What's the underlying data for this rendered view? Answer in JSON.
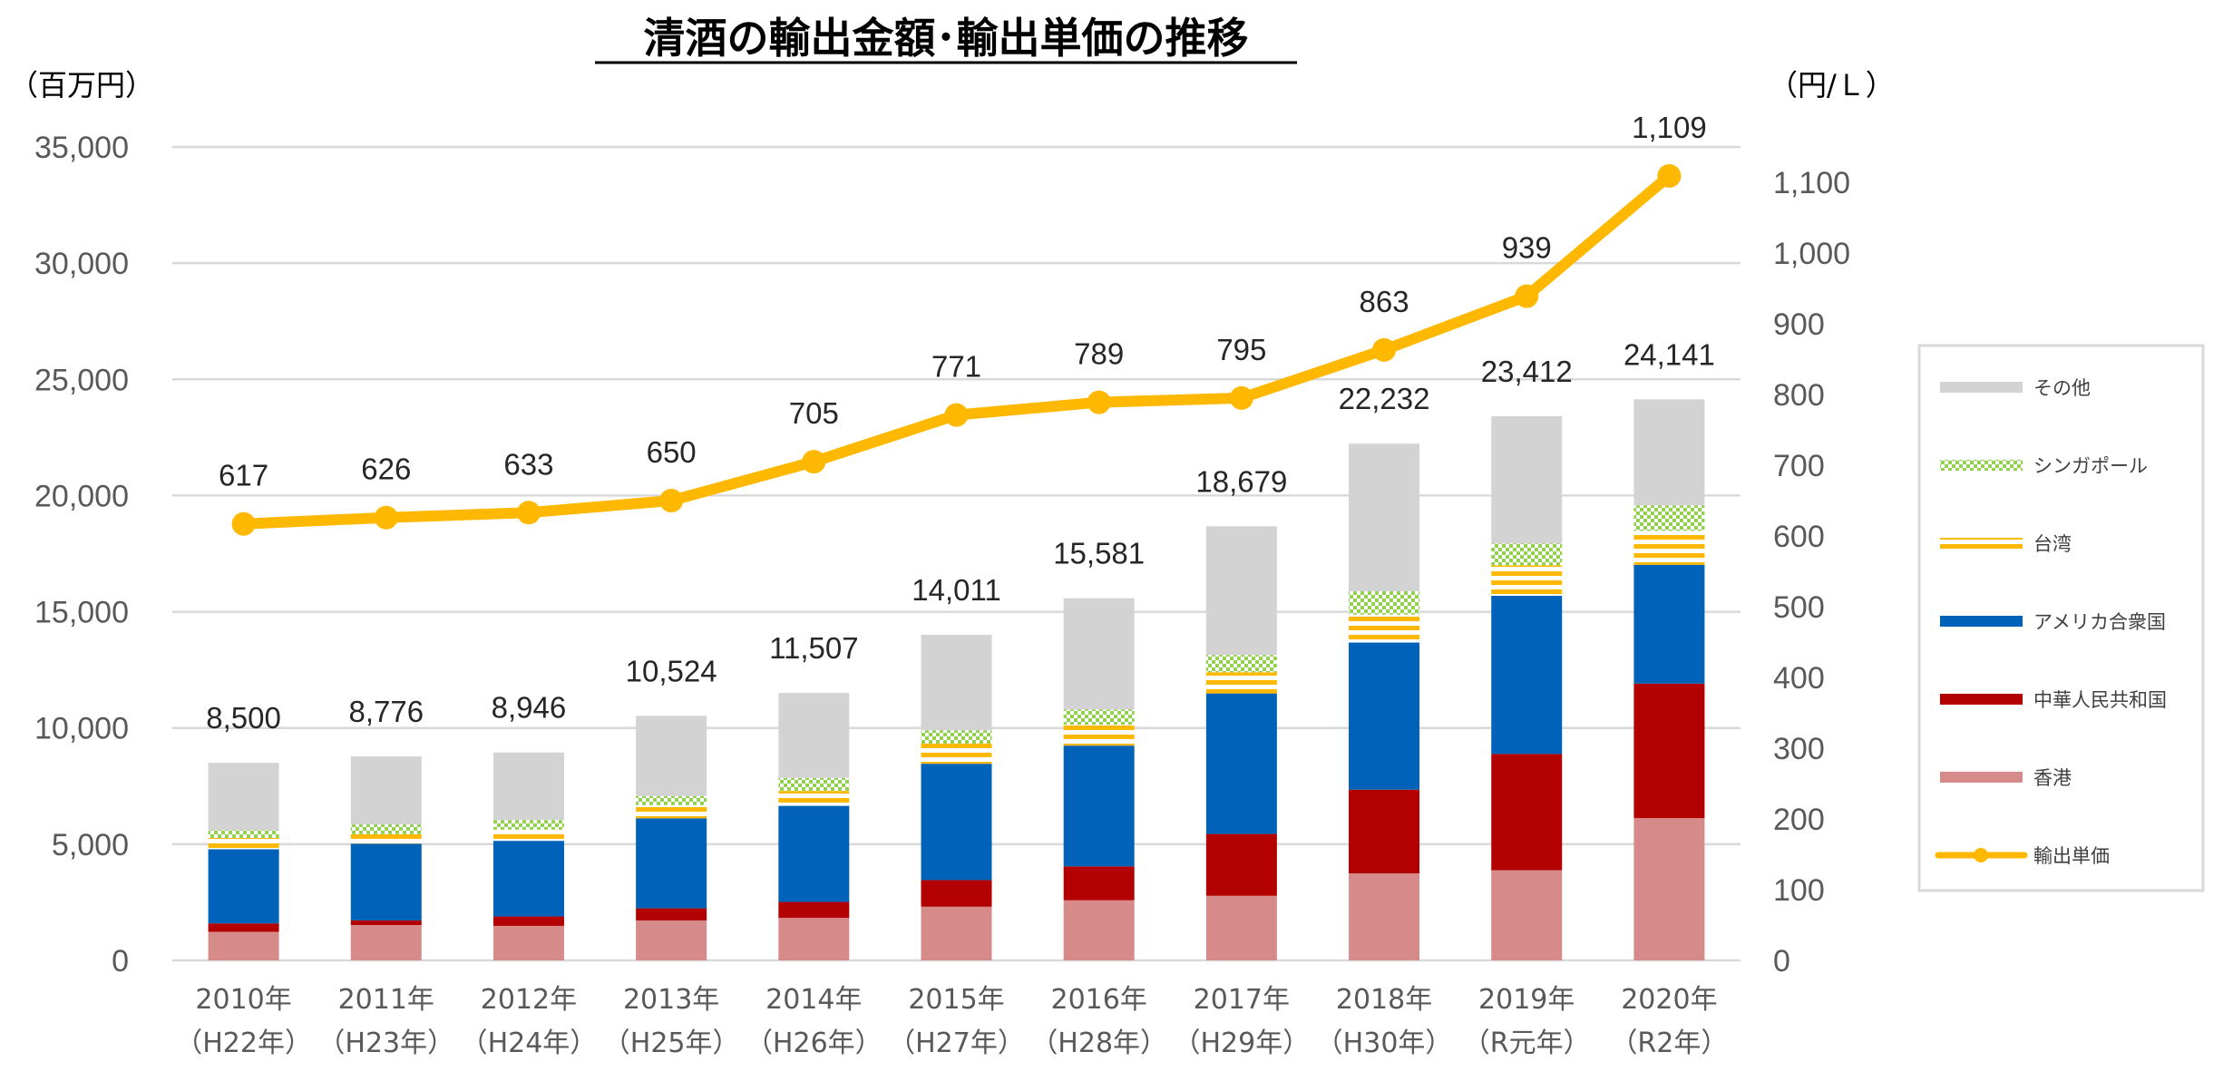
{
  "chart_data": {
    "type": "bar",
    "subtype": "stacked-bar-with-line",
    "title": "清酒の輸出金額･輸出単価の推移",
    "left_axis": {
      "label": "（百万円）",
      "min": 0,
      "max": 35000,
      "step": 5000,
      "ticks": [
        "0",
        "5,000",
        "10,000",
        "15,000",
        "20,000",
        "25,000",
        "30,000",
        "35,000"
      ]
    },
    "right_axis": {
      "label": "（円/Ｌ）",
      "min": 0,
      "max": 1150,
      "step": 100,
      "ticks": [
        "0",
        "100",
        "200",
        "300",
        "400",
        "500",
        "600",
        "700",
        "800",
        "900",
        "1,000",
        "1,100"
      ]
    },
    "grid": true,
    "legend_position": "right",
    "categories": [
      [
        "2010年",
        "（H22年）"
      ],
      [
        "2011年",
        "（H23年）"
      ],
      [
        "2012年",
        "（H24年）"
      ],
      [
        "2013年",
        "（H25年）"
      ],
      [
        "2014年",
        "（H26年）"
      ],
      [
        "2015年",
        "（H27年）"
      ],
      [
        "2016年",
        "（H28年）"
      ],
      [
        "2017年",
        "（H29年）"
      ],
      [
        "2018年",
        "（H30年）"
      ],
      [
        "2019年",
        "（R元年）"
      ],
      [
        "2020年",
        "（R2年）"
      ]
    ],
    "series": [
      {
        "name": "香港",
        "color": "#D68B8A",
        "pattern": "solid",
        "values": [
          1230,
          1520,
          1485,
          1720,
          1830,
          2310,
          2585,
          2780,
          3745,
          3880,
          6120
        ]
      },
      {
        "name": "中華人民共和国",
        "color": "#B30000",
        "pattern": "solid",
        "values": [
          360,
          200,
          405,
          520,
          685,
          1145,
          1460,
          2660,
          3600,
          5000,
          5790
        ]
      },
      {
        "name": "アメリカ合衆国",
        "color": "#0062B8",
        "pattern": "solid",
        "values": [
          3190,
          3300,
          3255,
          3875,
          4135,
          5005,
          5195,
          6045,
          6330,
          6810,
          5110
        ]
      },
      {
        "name": "台湾",
        "color": "#FFB800",
        "pattern": "hstripes",
        "values": [
          490,
          410,
          480,
          565,
          640,
          865,
          900,
          910,
          1205,
          1310,
          1460
        ]
      },
      {
        "name": "シンガポール",
        "color": "#92D050",
        "pattern": "checker",
        "values": [
          330,
          420,
          415,
          390,
          560,
          575,
          650,
          745,
          1000,
          930,
          1090
        ]
      },
      {
        "name": "その他",
        "color": "#D3D3D3",
        "pattern": "solid",
        "values": [
          2900,
          2926,
          2906,
          3454,
          3657,
          4111,
          4791,
          5539,
          6352,
          5482,
          4571
        ]
      }
    ],
    "totals": [
      8500,
      8776,
      8946,
      10524,
      11507,
      14011,
      15581,
      18679,
      22232,
      23412,
      24141
    ],
    "total_labels": [
      "8,500",
      "8,776",
      "8,946",
      "10,524",
      "11,507",
      "14,011",
      "15,581",
      "18,679",
      "22,232",
      "23,412",
      "24,141"
    ],
    "line": {
      "name": "輸出単価",
      "color": "#FFB800",
      "axis": "right",
      "values": [
        617,
        626,
        633,
        650,
        705,
        771,
        789,
        795,
        863,
        939,
        1109
      ],
      "labels": [
        "617",
        "626",
        "633",
        "650",
        "705",
        "771",
        "789",
        "795",
        "863",
        "939",
        "1,109"
      ]
    },
    "legend_order": [
      "その他",
      "シンガポール",
      "台湾",
      "アメリカ合衆国",
      "中華人民共和国",
      "香港",
      "輸出単価"
    ]
  }
}
